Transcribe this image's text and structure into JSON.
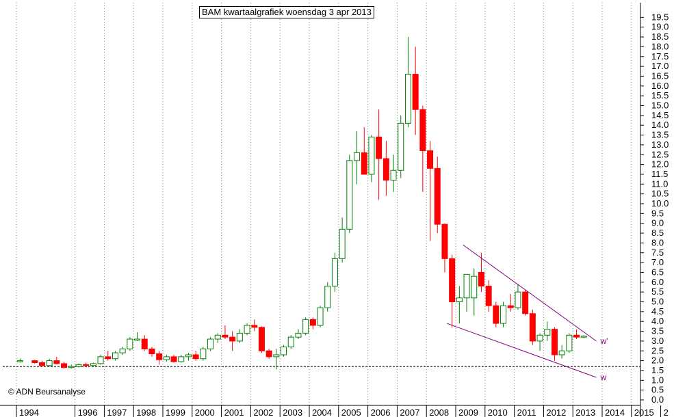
{
  "title": "BAM kwartaalgrafiek woensdag 3 apr 2013",
  "copyright": "© ADN Beursanalyse",
  "colors": {
    "up": "#008000",
    "down": "#ff0000",
    "trendline": "#800080",
    "support": "#000000",
    "grid": "#808080"
  },
  "chart_data": {
    "type": "candlestick",
    "title": "BAM kwartaalgrafiek woensdag 3 apr 2013",
    "xlabel": "",
    "ylabel": "",
    "ylim": [
      0,
      19.5
    ],
    "y_ticks": [
      "0.0",
      "0.5",
      "1.0",
      "1.5",
      "2.0",
      "2.5",
      "3.0",
      "3.5",
      "4.0",
      "4.5",
      "5.0",
      "5.5",
      "6.0",
      "6.5",
      "7.0",
      "7.5",
      "8.0",
      "8.5",
      "9.0",
      "9.5",
      "10.0",
      "10.5",
      "11.0",
      "11.5",
      "12.0",
      "12.5",
      "13.0",
      "13.5",
      "14.0",
      "14.5",
      "15.0",
      "15.5",
      "16.0",
      "16.5",
      "17.0",
      "17.5",
      "18.0",
      "18.5",
      "19.0",
      "19.5"
    ],
    "x_ticks": [
      "1994",
      "1996",
      "1997",
      "1998",
      "1999",
      "2000",
      "2001",
      "2002",
      "2003",
      "2004",
      "2005",
      "2006",
      "2007",
      "2008",
      "2009",
      "2010",
      "2011",
      "2012",
      "2013",
      "2014",
      "2015",
      "2"
    ],
    "x_tick_pos": [
      1994.0,
      1996.0,
      1997.0,
      1998.0,
      1999.0,
      2000.0,
      2001.0,
      2002.0,
      2003.0,
      2004.0,
      2005.0,
      2006.0,
      2007.0,
      2008.0,
      2009.0,
      2010.0,
      2011.0,
      2012.0,
      2013.0,
      2014.0,
      2015.0,
      2016.0
    ],
    "grid": true,
    "candles": [
      {
        "q": "1994Q1",
        "o": 2.0,
        "h": 2.1,
        "l": 1.9,
        "c": 2.0
      },
      {
        "q": "1994Q3",
        "o": 2.0,
        "h": 2.05,
        "l": 1.85,
        "c": 1.9
      },
      {
        "q": "1994Q4",
        "o": 1.9,
        "h": 2.0,
        "l": 1.7,
        "c": 1.75
      },
      {
        "q": "1995Q1",
        "o": 1.75,
        "h": 2.1,
        "l": 1.7,
        "c": 2.0
      },
      {
        "q": "1995Q2",
        "o": 2.0,
        "h": 2.2,
        "l": 1.8,
        "c": 1.85
      },
      {
        "q": "1995Q3",
        "o": 1.85,
        "h": 1.95,
        "l": 1.6,
        "c": 1.65
      },
      {
        "q": "1995Q4",
        "o": 1.65,
        "h": 1.8,
        "l": 1.6,
        "c": 1.7
      },
      {
        "q": "1996Q1",
        "o": 1.7,
        "h": 1.85,
        "l": 1.65,
        "c": 1.8
      },
      {
        "q": "1996Q2",
        "o": 1.8,
        "h": 1.9,
        "l": 1.7,
        "c": 1.75
      },
      {
        "q": "1996Q3",
        "o": 1.75,
        "h": 1.9,
        "l": 1.7,
        "c": 1.85
      },
      {
        "q": "1996Q4",
        "o": 1.85,
        "h": 2.3,
        "l": 1.8,
        "c": 2.2
      },
      {
        "q": "1997Q1",
        "o": 2.2,
        "h": 2.5,
        "l": 2.0,
        "c": 2.1
      },
      {
        "q": "1997Q2",
        "o": 2.1,
        "h": 2.5,
        "l": 2.0,
        "c": 2.4
      },
      {
        "q": "1997Q3",
        "o": 2.4,
        "h": 2.7,
        "l": 2.3,
        "c": 2.6
      },
      {
        "q": "1997Q4",
        "o": 2.6,
        "h": 3.2,
        "l": 2.5,
        "c": 3.1
      },
      {
        "q": "1998Q1",
        "o": 3.1,
        "h": 3.45,
        "l": 3.0,
        "c": 3.1
      },
      {
        "q": "1998Q2",
        "o": 3.1,
        "h": 3.3,
        "l": 2.5,
        "c": 2.6
      },
      {
        "q": "1998Q3",
        "o": 2.6,
        "h": 2.7,
        "l": 2.2,
        "c": 2.35
      },
      {
        "q": "1998Q4",
        "o": 2.35,
        "h": 2.5,
        "l": 1.8,
        "c": 2.05
      },
      {
        "q": "1999Q1",
        "o": 2.05,
        "h": 2.3,
        "l": 1.95,
        "c": 2.2
      },
      {
        "q": "1999Q2",
        "o": 2.2,
        "h": 2.3,
        "l": 1.9,
        "c": 1.95
      },
      {
        "q": "1999Q3",
        "o": 1.95,
        "h": 2.3,
        "l": 1.9,
        "c": 2.2
      },
      {
        "q": "1999Q4",
        "o": 2.2,
        "h": 2.4,
        "l": 2.0,
        "c": 2.3
      },
      {
        "q": "2000Q1",
        "o": 2.3,
        "h": 2.5,
        "l": 2.0,
        "c": 2.1
      },
      {
        "q": "2000Q2",
        "o": 2.1,
        "h": 2.7,
        "l": 2.0,
        "c": 2.6
      },
      {
        "q": "2000Q3",
        "o": 2.6,
        "h": 3.2,
        "l": 2.5,
        "c": 3.1
      },
      {
        "q": "2000Q4",
        "o": 3.1,
        "h": 3.4,
        "l": 2.9,
        "c": 3.3
      },
      {
        "q": "2001Q1",
        "o": 3.3,
        "h": 3.8,
        "l": 3.1,
        "c": 3.2
      },
      {
        "q": "2001Q2",
        "o": 3.2,
        "h": 3.5,
        "l": 2.5,
        "c": 3.0
      },
      {
        "q": "2001Q3",
        "o": 3.0,
        "h": 3.6,
        "l": 2.9,
        "c": 3.4
      },
      {
        "q": "2001Q4",
        "o": 3.4,
        "h": 3.9,
        "l": 3.3,
        "c": 3.8
      },
      {
        "q": "2002Q1",
        "o": 3.8,
        "h": 4.1,
        "l": 3.5,
        "c": 3.7
      },
      {
        "q": "2002Q2",
        "o": 3.7,
        "h": 3.75,
        "l": 2.4,
        "c": 2.5
      },
      {
        "q": "2002Q3",
        "o": 2.5,
        "h": 2.6,
        "l": 2.1,
        "c": 2.2
      },
      {
        "q": "2002Q4",
        "o": 2.2,
        "h": 2.6,
        "l": 1.55,
        "c": 2.3
      },
      {
        "q": "2003Q1",
        "o": 2.3,
        "h": 2.8,
        "l": 2.2,
        "c": 2.7
      },
      {
        "q": "2003Q2",
        "o": 2.7,
        "h": 3.3,
        "l": 2.6,
        "c": 3.2
      },
      {
        "q": "2003Q3",
        "o": 3.2,
        "h": 3.6,
        "l": 3.1,
        "c": 3.4
      },
      {
        "q": "2003Q4",
        "o": 3.4,
        "h": 4.2,
        "l": 3.3,
        "c": 4.1
      },
      {
        "q": "2004Q1",
        "o": 4.1,
        "h": 4.2,
        "l": 3.6,
        "c": 3.8
      },
      {
        "q": "2004Q2",
        "o": 3.8,
        "h": 4.8,
        "l": 3.7,
        "c": 4.7
      },
      {
        "q": "2004Q3",
        "o": 4.7,
        "h": 6.0,
        "l": 4.5,
        "c": 5.8
      },
      {
        "q": "2004Q4",
        "o": 5.8,
        "h": 7.5,
        "l": 5.5,
        "c": 7.2
      },
      {
        "q": "2005Q1",
        "o": 7.2,
        "h": 9.3,
        "l": 7.0,
        "c": 8.7
      },
      {
        "q": "2005Q2",
        "o": 8.7,
        "h": 12.5,
        "l": 8.5,
        "c": 12.2
      },
      {
        "q": "2005Q3",
        "o": 12.2,
        "h": 13.7,
        "l": 11.0,
        "c": 12.6
      },
      {
        "q": "2005Q4",
        "o": 12.6,
        "h": 13.9,
        "l": 11.5,
        "c": 11.5
      },
      {
        "q": "2006Q1",
        "o": 11.5,
        "h": 13.5,
        "l": 11.1,
        "c": 13.4
      },
      {
        "q": "2006Q2",
        "o": 13.4,
        "h": 14.8,
        "l": 10.2,
        "c": 12.3
      },
      {
        "q": "2006Q3",
        "o": 12.3,
        "h": 13.2,
        "l": 10.4,
        "c": 11.2
      },
      {
        "q": "2006Q4",
        "o": 11.2,
        "h": 12.5,
        "l": 10.6,
        "c": 11.7
      },
      {
        "q": "2007Q1",
        "o": 11.7,
        "h": 14.5,
        "l": 11.3,
        "c": 14.1
      },
      {
        "q": "2007Q2",
        "o": 14.1,
        "h": 18.5,
        "l": 13.9,
        "c": 16.6
      },
      {
        "q": "2007Q3",
        "o": 16.6,
        "h": 18.0,
        "l": 13.5,
        "c": 14.8
      },
      {
        "q": "2007Q4",
        "o": 14.8,
        "h": 15.0,
        "l": 10.6,
        "c": 12.7
      },
      {
        "q": "2008Q1",
        "o": 12.7,
        "h": 13.2,
        "l": 8.1,
        "c": 11.8
      },
      {
        "q": "2008Q2",
        "o": 11.8,
        "h": 12.4,
        "l": 8.5,
        "c": 8.95
      },
      {
        "q": "2008Q3",
        "o": 8.95,
        "h": 9.0,
        "l": 6.5,
        "c": 7.2
      },
      {
        "q": "2008Q4",
        "o": 7.2,
        "h": 7.4,
        "l": 3.7,
        "c": 5.0
      },
      {
        "q": "2009Q1",
        "o": 5.0,
        "h": 5.8,
        "l": 3.9,
        "c": 5.2
      },
      {
        "q": "2009Q2",
        "o": 5.2,
        "h": 6.3,
        "l": 4.5,
        "c": 6.4
      },
      {
        "q": "2009Q3",
        "o": 5.2,
        "h": 6.7,
        "l": 4.3,
        "c": 6.3
      },
      {
        "q": "2009Q4",
        "o": 6.5,
        "h": 7.5,
        "l": 5.5,
        "c": 5.8
      },
      {
        "q": "2010Q1",
        "o": 5.8,
        "h": 6.1,
        "l": 4.5,
        "c": 4.8
      },
      {
        "q": "2010Q2",
        "o": 4.8,
        "h": 5.0,
        "l": 3.7,
        "c": 3.9
      },
      {
        "q": "2010Q3",
        "o": 3.9,
        "h": 5.0,
        "l": 3.7,
        "c": 4.8
      },
      {
        "q": "2010Q4",
        "o": 4.8,
        "h": 5.4,
        "l": 4.5,
        "c": 4.7
      },
      {
        "q": "2011Q1",
        "o": 4.7,
        "h": 5.9,
        "l": 4.6,
        "c": 5.5
      },
      {
        "q": "2011Q2",
        "o": 5.5,
        "h": 5.6,
        "l": 4.3,
        "c": 4.4
      },
      {
        "q": "2011Q3",
        "o": 4.4,
        "h": 4.6,
        "l": 2.8,
        "c": 3.0
      },
      {
        "q": "2011Q4",
        "o": 3.0,
        "h": 3.4,
        "l": 2.5,
        "c": 3.3
      },
      {
        "q": "2012Q1",
        "o": 3.3,
        "h": 4.0,
        "l": 3.0,
        "c": 3.6
      },
      {
        "q": "2012Q2",
        "o": 3.6,
        "h": 3.7,
        "l": 2.0,
        "c": 2.3
      },
      {
        "q": "2012Q3",
        "o": 2.3,
        "h": 2.8,
        "l": 2.1,
        "c": 2.5
      },
      {
        "q": "2012Q4",
        "o": 2.5,
        "h": 3.4,
        "l": 2.4,
        "c": 3.3
      },
      {
        "q": "2013Q1",
        "o": 3.3,
        "h": 3.6,
        "l": 3.1,
        "c": 3.2
      },
      {
        "q": "2013Q2",
        "o": 3.2,
        "h": 3.3,
        "l": 3.15,
        "c": 3.25
      }
    ],
    "trendlines": [
      {
        "name": "w'",
        "x1": 2009.25,
        "y1": 7.9,
        "x2": 2013.8,
        "y2": 3.0
      },
      {
        "name": "w",
        "x1": 2008.7,
        "y1": 3.9,
        "x2": 2013.8,
        "y2": 1.15
      }
    ],
    "support_line": 1.7
  }
}
